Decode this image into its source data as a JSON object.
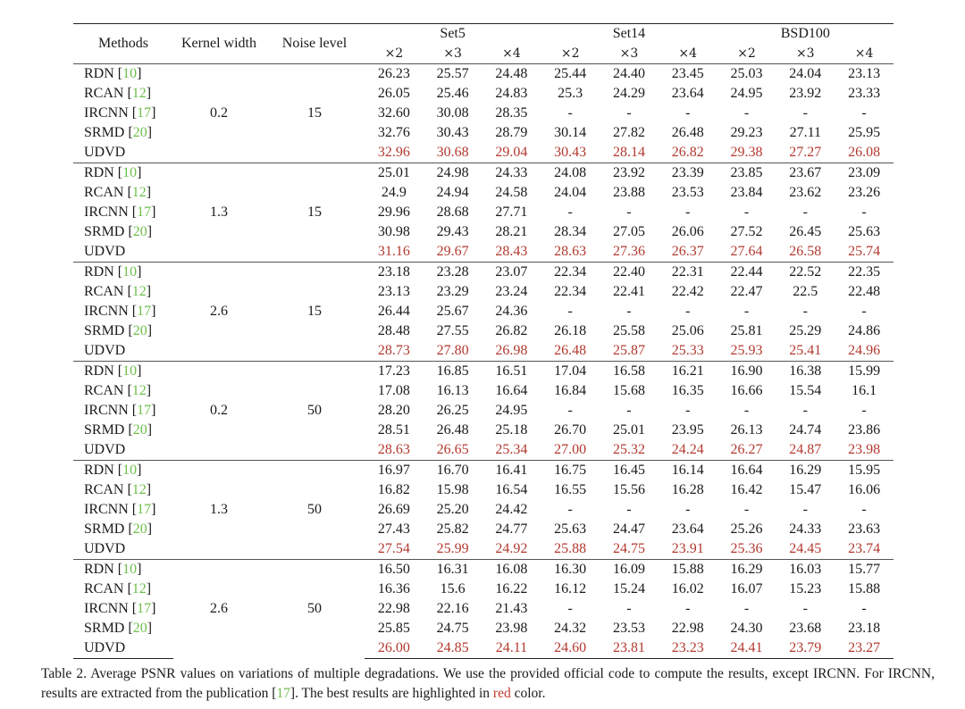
{
  "table": {
    "headers": {
      "methods": "Methods",
      "kernel_width": "Kernel width",
      "noise_level": "Noise level",
      "datasets": [
        "Set5",
        "Set14",
        "BSD100"
      ],
      "scales": [
        "×2",
        "×3",
        "×4",
        "×2",
        "×3",
        "×4",
        "×2",
        "×3",
        "×4"
      ]
    },
    "groups": [
      {
        "kernel": "0.2",
        "noise": "15",
        "rows": [
          {
            "method": "RDN",
            "cite": "10",
            "values": [
              "26.23",
              "25.57",
              "24.48",
              "25.44",
              "24.40",
              "23.45",
              "25.03",
              "24.04",
              "23.13"
            ]
          },
          {
            "method": "RCAN",
            "cite": "12",
            "values": [
              "26.05",
              "25.46",
              "24.83",
              "25.3",
              "24.29",
              "23.64",
              "24.95",
              "23.92",
              "23.33"
            ]
          },
          {
            "method": "IRCNN",
            "cite": "17",
            "values": [
              "32.60",
              "30.08",
              "28.35",
              "-",
              "-",
              "-",
              "-",
              "-",
              "-"
            ]
          },
          {
            "method": "SRMD",
            "cite": "20",
            "values": [
              "32.76",
              "30.43",
              "28.79",
              "30.14",
              "27.82",
              "26.48",
              "29.23",
              "27.11",
              "25.95"
            ]
          },
          {
            "method": "UDVD",
            "cite": "",
            "best": true,
            "values": [
              "32.96",
              "30.68",
              "29.04",
              "30.43",
              "28.14",
              "26.82",
              "29.38",
              "27.27",
              "26.08"
            ]
          }
        ]
      },
      {
        "kernel": "1.3",
        "noise": "15",
        "rows": [
          {
            "method": "RDN",
            "cite": "10",
            "values": [
              "25.01",
              "24.98",
              "24.33",
              "24.08",
              "23.92",
              "23.39",
              "23.85",
              "23.67",
              "23.09"
            ]
          },
          {
            "method": "RCAN",
            "cite": "12",
            "values": [
              "24.9",
              "24.94",
              "24.58",
              "24.04",
              "23.88",
              "23.53",
              "23.84",
              "23.62",
              "23.26"
            ]
          },
          {
            "method": "IRCNN",
            "cite": "17",
            "values": [
              "29.96",
              "28.68",
              "27.71",
              "-",
              "-",
              "-",
              "-",
              "-",
              "-"
            ]
          },
          {
            "method": "SRMD",
            "cite": "20",
            "values": [
              "30.98",
              "29.43",
              "28.21",
              "28.34",
              "27.05",
              "26.06",
              "27.52",
              "26.45",
              "25.63"
            ]
          },
          {
            "method": "UDVD",
            "cite": "",
            "best": true,
            "values": [
              "31.16",
              "29.67",
              "28.43",
              "28.63",
              "27.36",
              "26.37",
              "27.64",
              "26.58",
              "25.74"
            ]
          }
        ]
      },
      {
        "kernel": "2.6",
        "noise": "15",
        "rows": [
          {
            "method": "RDN",
            "cite": "10",
            "values": [
              "23.18",
              "23.28",
              "23.07",
              "22.34",
              "22.40",
              "22.31",
              "22.44",
              "22.52",
              "22.35"
            ]
          },
          {
            "method": "RCAN",
            "cite": "12",
            "values": [
              "23.13",
              "23.29",
              "23.24",
              "22.34",
              "22.41",
              "22.42",
              "22.47",
              "22.5",
              "22.48"
            ]
          },
          {
            "method": "IRCNN",
            "cite": "17",
            "values": [
              "26.44",
              "25.67",
              "24.36",
              "-",
              "-",
              "-",
              "-",
              "-",
              "-"
            ]
          },
          {
            "method": "SRMD",
            "cite": "20",
            "values": [
              "28.48",
              "27.55",
              "26.82",
              "26.18",
              "25.58",
              "25.06",
              "25.81",
              "25.29",
              "24.86"
            ]
          },
          {
            "method": "UDVD",
            "cite": "",
            "best": true,
            "values": [
              "28.73",
              "27.80",
              "26.98",
              "26.48",
              "25.87",
              "25.33",
              "25.93",
              "25.41",
              "24.96"
            ]
          }
        ]
      },
      {
        "kernel": "0.2",
        "noise": "50",
        "rows": [
          {
            "method": "RDN",
            "cite": "10",
            "values": [
              "17.23",
              "16.85",
              "16.51",
              "17.04",
              "16.58",
              "16.21",
              "16.90",
              "16.38",
              "15.99"
            ]
          },
          {
            "method": "RCAN",
            "cite": "12",
            "values": [
              "17.08",
              "16.13",
              "16.64",
              "16.84",
              "15.68",
              "16.35",
              "16.66",
              "15.54",
              "16.1"
            ]
          },
          {
            "method": "IRCNN",
            "cite": "17",
            "values": [
              "28.20",
              "26.25",
              "24.95",
              "-",
              "-",
              "-",
              "-",
              "-",
              "-"
            ]
          },
          {
            "method": "SRMD",
            "cite": "20",
            "values": [
              "28.51",
              "26.48",
              "25.18",
              "26.70",
              "25.01",
              "23.95",
              "26.13",
              "24.74",
              "23.86"
            ]
          },
          {
            "method": "UDVD",
            "cite": "",
            "best": true,
            "values": [
              "28.63",
              "26.65",
              "25.34",
              "27.00",
              "25.32",
              "24.24",
              "26.27",
              "24.87",
              "23.98"
            ]
          }
        ]
      },
      {
        "kernel": "1.3",
        "noise": "50",
        "rows": [
          {
            "method": "RDN",
            "cite": "10",
            "values": [
              "16.97",
              "16.70",
              "16.41",
              "16.75",
              "16.45",
              "16.14",
              "16.64",
              "16.29",
              "15.95"
            ]
          },
          {
            "method": "RCAN",
            "cite": "12",
            "values": [
              "16.82",
              "15.98",
              "16.54",
              "16.55",
              "15.56",
              "16.28",
              "16.42",
              "15.47",
              "16.06"
            ]
          },
          {
            "method": "IRCNN",
            "cite": "17",
            "values": [
              "26.69",
              "25.20",
              "24.42",
              "-",
              "-",
              "-",
              "-",
              "-",
              "-"
            ]
          },
          {
            "method": "SRMD",
            "cite": "20",
            "values": [
              "27.43",
              "25.82",
              "24.77",
              "25.63",
              "24.47",
              "23.64",
              "25.26",
              "24.33",
              "23.63"
            ]
          },
          {
            "method": "UDVD",
            "cite": "",
            "best": true,
            "values": [
              "27.54",
              "25.99",
              "24.92",
              "25.88",
              "24.75",
              "23.91",
              "25.36",
              "24.45",
              "23.74"
            ]
          }
        ]
      },
      {
        "kernel": "2.6",
        "noise": "50",
        "rows": [
          {
            "method": "RDN",
            "cite": "10",
            "values": [
              "16.50",
              "16.31",
              "16.08",
              "16.30",
              "16.09",
              "15.88",
              "16.29",
              "16.03",
              "15.77"
            ]
          },
          {
            "method": "RCAN",
            "cite": "12",
            "values": [
              "16.36",
              "15.6",
              "16.22",
              "16.12",
              "15.24",
              "16.02",
              "16.07",
              "15.23",
              "15.88"
            ]
          },
          {
            "method": "IRCNN",
            "cite": "17",
            "values": [
              "22.98",
              "22.16",
              "21.43",
              "-",
              "-",
              "-",
              "-",
              "-",
              "-"
            ]
          },
          {
            "method": "SRMD",
            "cite": "20",
            "values": [
              "25.85",
              "24.75",
              "23.98",
              "24.32",
              "23.53",
              "22.98",
              "24.30",
              "23.68",
              "23.18"
            ]
          },
          {
            "method": "UDVD",
            "cite": "",
            "best": true,
            "values": [
              "26.00",
              "24.85",
              "24.11",
              "24.60",
              "23.81",
              "23.23",
              "24.41",
              "23.79",
              "23.27"
            ]
          }
        ]
      }
    ]
  },
  "caption": {
    "part1": "Table 2. Average PSNR values on variations of multiple degradations.  We use the provided official code to compute the results, except IRCNN. For IRCNN, results are extracted from the publication [",
    "cite": "17",
    "part2": "]. The best results are highlighted in ",
    "red_word": "red",
    "part3": " color."
  },
  "colors": {
    "best": "#b2392f",
    "citation": "#6dbf4a",
    "text": "#1a1a1a"
  }
}
